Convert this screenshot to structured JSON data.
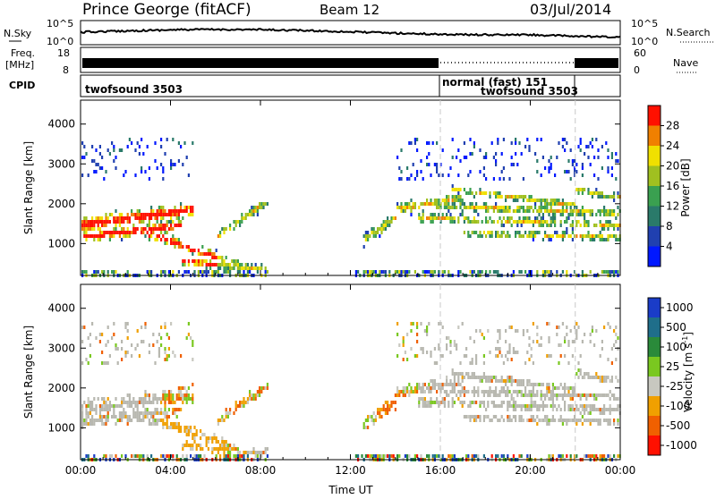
{
  "header": {
    "station": "Prince George (fitACF)",
    "beam": "Beam 12",
    "date": "03/Jul/2014"
  },
  "panels": {
    "nsky": {
      "left_label": "N.Sky",
      "right_label": "N.Search",
      "ticks_left": [
        "10^5",
        "10^0"
      ],
      "ticks_right": [
        "10^5",
        "10^0"
      ]
    },
    "freq": {
      "left_label_1": "Freq.",
      "left_label_2": "[MHz]",
      "right_label": "Nave",
      "ticks_left": [
        "18",
        "8"
      ],
      "ticks_right": [
        "60",
        "0"
      ]
    },
    "cpid": {
      "label": "CPID",
      "modes": [
        "twofsound 3503",
        "normal (fast) 151",
        "twofsound 3503"
      ]
    }
  },
  "colors": {
    "power_scale": [
      "#0018ff",
      "#2040b0",
      "#2a7a6a",
      "#3aa050",
      "#a0c020",
      "#f0e000",
      "#f08000",
      "#ff1000"
    ],
    "velocity_scale": [
      "#1a3cc8",
      "#1f6e8a",
      "#2a8a3a",
      "#7ac820",
      "#c8c8c0",
      "#f0a000",
      "#f06000",
      "#ff1000"
    ],
    "ground_scatter": "#b8b8b0"
  },
  "chart_data": [
    {
      "type": "heatmap",
      "title": "",
      "xlabel": "Time UT",
      "ylabel": "Slant Range [km]",
      "x_ticks": [
        "00:00",
        "04:00",
        "08:00",
        "12:00",
        "16:00",
        "20:00",
        "00:00"
      ],
      "y_ticks": [
        "1000",
        "2000",
        "3000",
        "4000"
      ],
      "xlim": [
        0,
        24
      ],
      "ylim": [
        200,
        4600
      ],
      "colorbar_label": "Power [dB]",
      "colorbar_ticks": [
        "4",
        "8",
        "12",
        "16",
        "20",
        "24",
        "28"
      ],
      "colorbar_range": [
        0,
        32
      ],
      "mode_boundaries_hours": [
        16,
        22
      ]
    },
    {
      "type": "heatmap",
      "title": "",
      "xlabel": "Time UT",
      "ylabel": "Slant Range [km]",
      "x_ticks": [
        "00:00",
        "04:00",
        "08:00",
        "12:00",
        "16:00",
        "20:00",
        "00:00"
      ],
      "y_ticks": [
        "1000",
        "2000",
        "3000",
        "4000"
      ],
      "xlim": [
        0,
        24
      ],
      "ylim": [
        200,
        4600
      ],
      "colorbar_label": "Velocity [m s",
      "colorbar_label_sup": "-1",
      "colorbar_label_end": "]",
      "colorbar_ticks": [
        "1000",
        "500",
        "100",
        "25",
        "-25",
        "-100",
        "-500",
        "-1000"
      ],
      "mode_boundaries_hours": [
        16,
        22
      ]
    }
  ]
}
